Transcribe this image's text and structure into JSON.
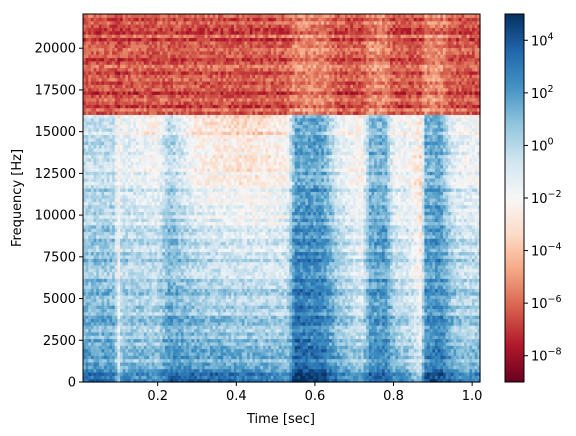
{
  "chart_data": {
    "type": "heatmap",
    "subtype": "spectrogram",
    "title": "",
    "xlabel": "Time [sec]",
    "ylabel": "Frequency [Hz]",
    "xlim": [
      0.01,
      1.02
    ],
    "ylim": [
      0,
      22050
    ],
    "x_ticks": [
      0.2,
      0.4,
      0.6,
      0.8,
      1.0
    ],
    "x_tick_labels": [
      "0.2",
      "0.4",
      "0.6",
      "0.8",
      "1.0"
    ],
    "y_ticks": [
      0,
      2500,
      5000,
      7500,
      10000,
      12500,
      15000,
      17500,
      20000
    ],
    "y_tick_labels": [
      "0",
      "2500",
      "5000",
      "7500",
      "10000",
      "12500",
      "15000",
      "17500",
      "20000"
    ],
    "colorbar": {
      "colormap": "RdBu",
      "scale": "log",
      "vmin_exp": -9,
      "vmax_exp": 5,
      "ticks_exp": [
        -8,
        -6,
        -4,
        -2,
        0,
        2,
        4
      ],
      "tick_labels": [
        {
          "base": "10",
          "exp": "−8"
        },
        {
          "base": "10",
          "exp": "−6"
        },
        {
          "base": "10",
          "exp": "−4"
        },
        {
          "base": "10",
          "exp": "−2"
        },
        {
          "base": "10",
          "exp": "0"
        },
        {
          "base": "10",
          "exp": "2"
        },
        {
          "base": "10",
          "exp": "4"
        }
      ]
    },
    "cutoff_frequency_hz": 16000,
    "time_bins": 150,
    "freq_bins": 110,
    "power_profile_log10": {
      "time_sec": [
        0.01,
        0.09,
        0.1,
        0.11,
        0.2,
        0.23,
        0.3,
        0.45,
        0.53,
        0.55,
        0.62,
        0.66,
        0.72,
        0.74,
        0.78,
        0.8,
        0.84,
        0.87,
        0.88,
        0.92,
        0.95,
        0.98,
        1.02
      ],
      "low_band": [
        1.8,
        1.8,
        -1.0,
        1.2,
        0.8,
        2.2,
        2.0,
        1.5,
        1.0,
        3.5,
        3.0,
        1.5,
        0.5,
        2.0,
        2.2,
        1.0,
        0.5,
        -1.0,
        2.5,
        2.8,
        1.5,
        1.0,
        1.2
      ],
      "mid_band": [
        0.5,
        0.5,
        -2.0,
        0.0,
        -0.5,
        1.0,
        -0.5,
        -1.0,
        -0.8,
        2.5,
        2.2,
        0.0,
        -1.5,
        1.5,
        1.8,
        -0.5,
        -1.0,
        -2.5,
        1.8,
        2.0,
        0.0,
        -0.5,
        -0.5
      ],
      "high_band": [
        -0.5,
        -0.5,
        -2.5,
        -1.5,
        -2.5,
        0.0,
        -3.0,
        -3.5,
        -2.5,
        1.5,
        1.5,
        -1.5,
        -2.5,
        1.0,
        1.0,
        -2.0,
        -2.0,
        -3.0,
        1.2,
        1.5,
        -1.5,
        -2.0,
        -2.0
      ],
      "above_cutoff": [
        -6.5,
        -6.5,
        -7.0,
        -6.5,
        -6.5,
        -6.5,
        -6.5,
        -6.5,
        -6.5,
        -5.5,
        -5.5,
        -6.5,
        -6.5,
        -5.5,
        -5.5,
        -6.5,
        -6.5,
        -6.5,
        -5.5,
        -5.5,
        -6.5,
        -6.5,
        -6.5
      ]
    }
  }
}
